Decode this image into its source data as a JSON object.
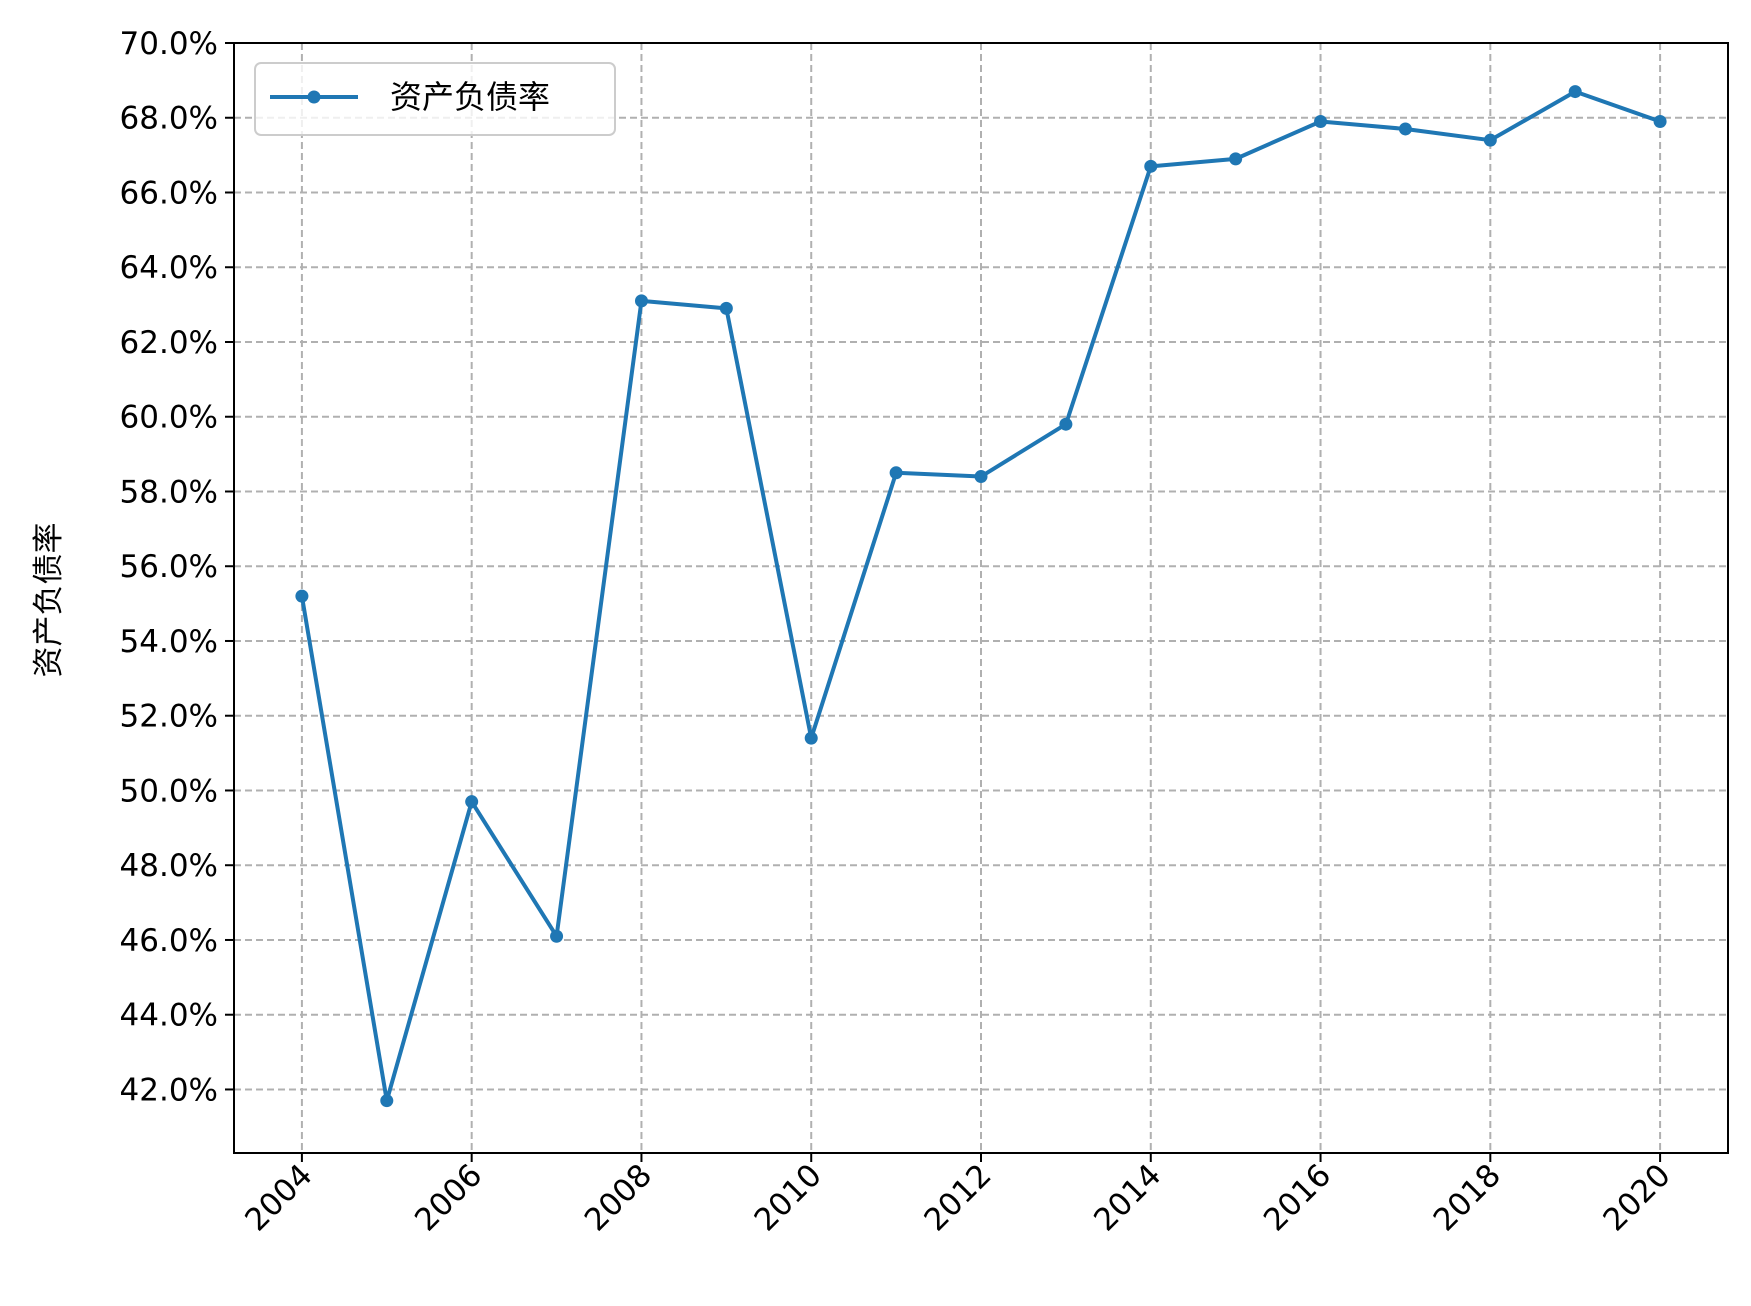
{
  "chart_data": {
    "type": "line",
    "title": "",
    "xlabel": "",
    "ylabel": "资产负债率",
    "x": [
      2004,
      2005,
      2006,
      2007,
      2008,
      2009,
      2010,
      2011,
      2012,
      2013,
      2014,
      2015,
      2016,
      2017,
      2018,
      2019,
      2020
    ],
    "series": [
      {
        "name": "资产负债率",
        "color": "#1f77b4",
        "marker": "circle",
        "values": [
          55.2,
          41.7,
          49.7,
          46.1,
          63.1,
          62.9,
          51.4,
          58.5,
          58.4,
          59.8,
          66.7,
          66.9,
          67.9,
          67.7,
          67.4,
          68.7,
          67.9
        ]
      }
    ],
    "xticks": [
      "2004",
      "2006",
      "2008",
      "2010",
      "2012",
      "2014",
      "2016",
      "2018",
      "2020"
    ],
    "yticks": [
      "42.0%",
      "44.0%",
      "46.0%",
      "48.0%",
      "50.0%",
      "52.0%",
      "54.0%",
      "56.0%",
      "58.0%",
      "60.0%",
      "62.0%",
      "64.0%",
      "66.0%",
      "68.0%",
      "70.0%"
    ],
    "xlim": [
      2003.2,
      2020.8
    ],
    "ylim": [
      40.3,
      70.0
    ],
    "grid": true,
    "grid_style": "dashed",
    "legend": "top-left",
    "xtick_rotation": "45 degrees"
  }
}
